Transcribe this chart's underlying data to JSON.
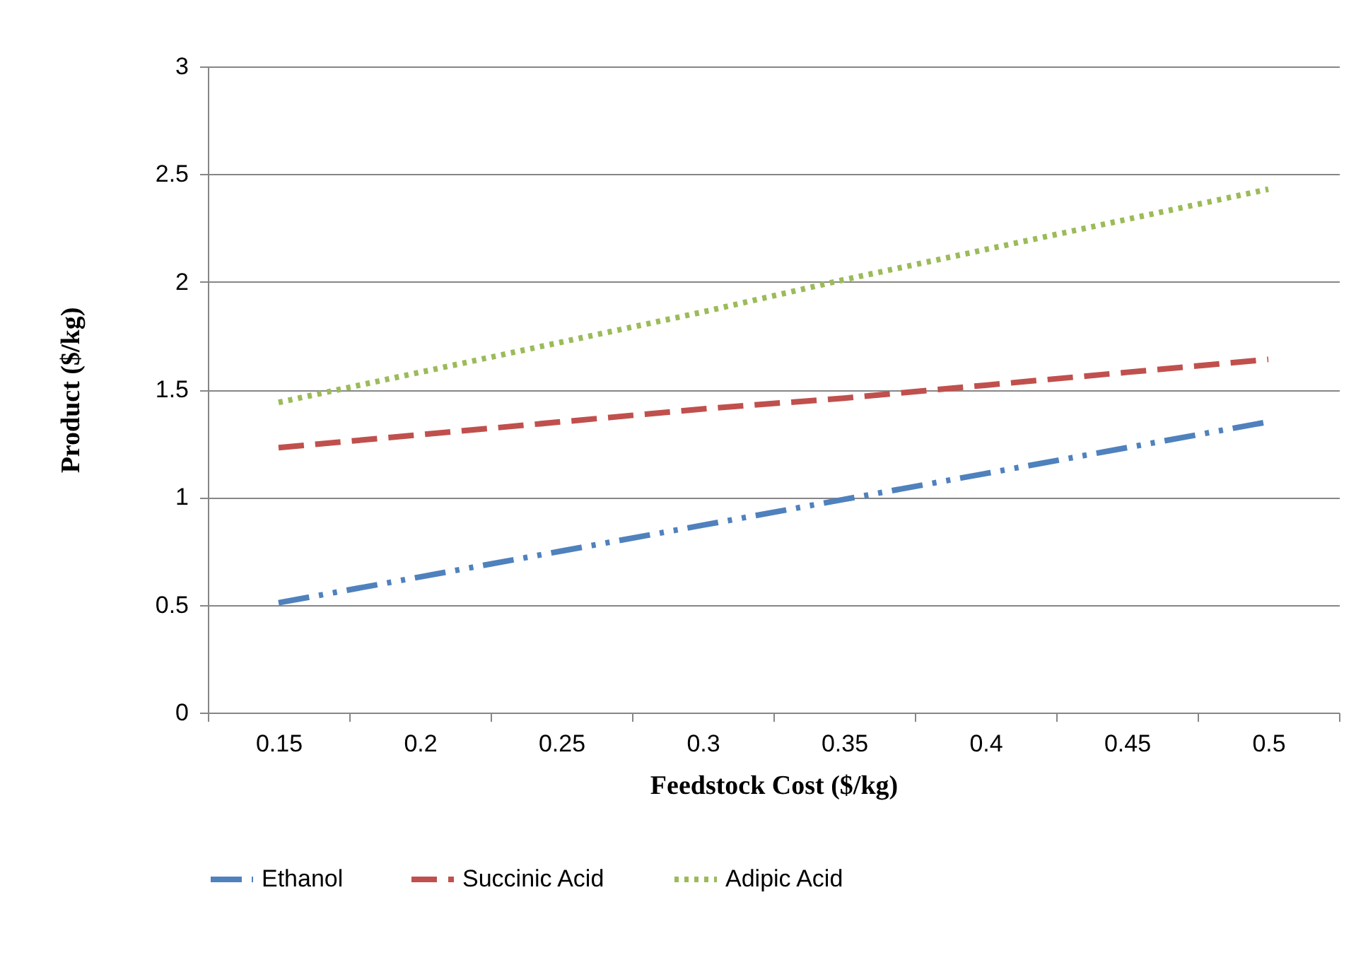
{
  "chart_data": {
    "type": "line",
    "xlabel": "Feedstock Cost ($/kg)",
    "ylabel": "Product ($/kg)",
    "categories": [
      "0.15",
      "0.2",
      "0.25",
      "0.3",
      "0.35",
      "0.4",
      "0.45",
      "0.5"
    ],
    "series": [
      {
        "name": "Ethanol",
        "color": "#4f81bd",
        "line_style": "dashdot",
        "values": [
          0.51,
          0.63,
          0.75,
          0.87,
          0.99,
          1.11,
          1.23,
          1.35
        ]
      },
      {
        "name": "Succinic Acid",
        "color": "#c0504d",
        "line_style": "dashed",
        "values": [
          1.23,
          1.29,
          1.35,
          1.41,
          1.46,
          1.52,
          1.58,
          1.64
        ]
      },
      {
        "name": "Adipic Acid",
        "color": "#9bbb59",
        "line_style": "dotted",
        "values": [
          1.44,
          1.58,
          1.72,
          1.86,
          2.01,
          2.15,
          2.29,
          2.43
        ]
      }
    ],
    "ylim": [
      0,
      3
    ],
    "yticks": [
      0,
      0.5,
      1,
      1.5,
      2,
      2.5,
      3
    ],
    "grid": "y",
    "legend": "bottom",
    "marker": "none"
  }
}
